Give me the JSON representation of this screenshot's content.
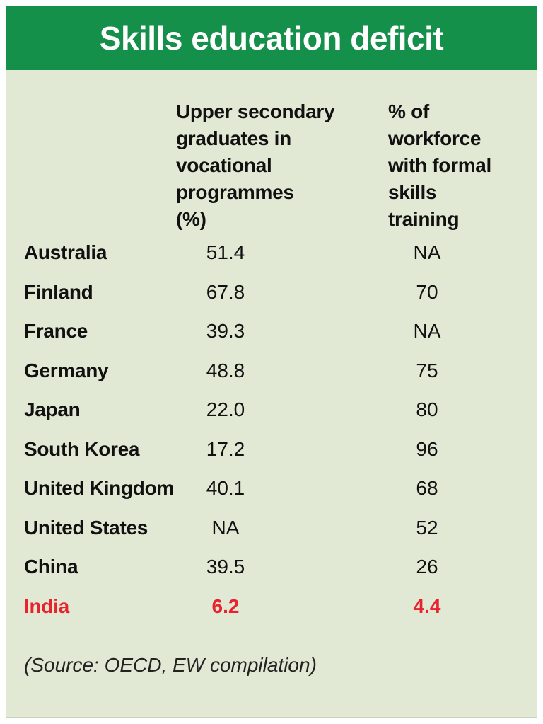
{
  "title": "Skills education deficit",
  "chart_data": {
    "type": "table",
    "title": "Skills education deficit",
    "columns": [
      "",
      "Upper secondary\ngraduates in\nvocational\nprogrammes\n (%)",
      "% of\nworkforce\nwith formal\nskills\ntraining"
    ],
    "rows": [
      {
        "country": "Australia",
        "vocational_pct": "51.4",
        "skills_training_pct": "NA"
      },
      {
        "country": "Finland",
        "vocational_pct": "67.8",
        "skills_training_pct": "70"
      },
      {
        "country": "France",
        "vocational_pct": "39.3",
        "skills_training_pct": "NA"
      },
      {
        "country": "Germany",
        "vocational_pct": "48.8",
        "skills_training_pct": "75"
      },
      {
        "country": "Japan",
        "vocational_pct": "22.0",
        "skills_training_pct": "80"
      },
      {
        "country": "South Korea",
        "vocational_pct": "17.2",
        "skills_training_pct": "96"
      },
      {
        "country": "United Kingdom",
        "vocational_pct": "40.1",
        "skills_training_pct": "68"
      },
      {
        "country": "United States",
        "vocational_pct": "NA",
        "skills_training_pct": "52"
      },
      {
        "country": "China",
        "vocational_pct": "39.5",
        "skills_training_pct": "26"
      },
      {
        "country": "India",
        "vocational_pct": "6.2",
        "skills_training_pct": "4.4",
        "highlighted": true
      }
    ],
    "source": "(Source: OECD, EW compilation)"
  },
  "colors": {
    "title_bar": "#14904a",
    "panel_background": "#e1e9d4",
    "highlight": "#e8232d"
  }
}
